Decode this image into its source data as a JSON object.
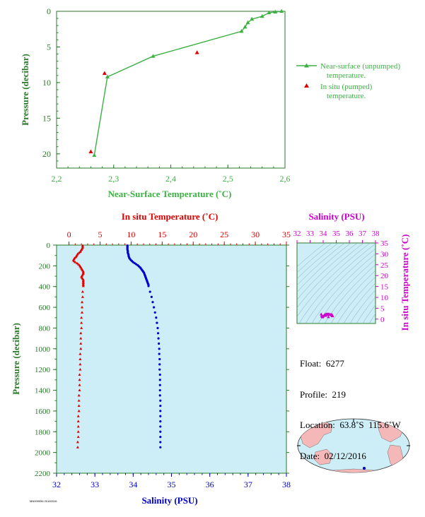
{
  "colors": {
    "surface": "#3cb043",
    "insitu": "#e00000",
    "salinity": "#0000cc",
    "ts": "#cc00cc",
    "axis_green": "#2a7a2a",
    "panel_bg": "#cdeef7",
    "land": "#f4b8b8"
  },
  "chart_data": [
    {
      "type": "line",
      "xlabel": "Near-Surface Temperature (˚C)",
      "ylabel": "Pressure (decibar)",
      "xlim": [
        2.2,
        2.6
      ],
      "ylim": [
        0,
        22
      ],
      "x_ticks": [
        "2,2",
        "2,3",
        "2,4",
        "2,5",
        "2,6"
      ],
      "y_ticks": [
        "0",
        "5",
        "10",
        "15",
        "20"
      ],
      "series": [
        {
          "name": "Near-surface (unpumped) temperature.",
          "points": [
            [
              2.266,
              20.2
            ],
            [
              2.289,
              9.2
            ],
            [
              2.369,
              6.3
            ],
            [
              2.524,
              2.8
            ],
            [
              2.53,
              2.2
            ],
            [
              2.535,
              1.6
            ],
            [
              2.542,
              1.1
            ],
            [
              2.56,
              0.7
            ],
            [
              2.572,
              0.2
            ],
            [
              2.583,
              0.1
            ],
            [
              2.594,
              0.0
            ]
          ]
        },
        {
          "name": "In situ (pumped) temperature.",
          "points": [
            [
              2.26,
              19.7
            ],
            [
              2.284,
              8.7
            ],
            [
              2.446,
              5.8
            ]
          ]
        }
      ],
      "legend_position": "right"
    },
    {
      "type": "line",
      "x_top_label": "In situ Temperature (˚C)",
      "x_bottom_label": "Salinity (PSU)",
      "ylabel": "Pressure (decibar)",
      "temp_lim": [
        -2,
        35
      ],
      "sal_lim": [
        32,
        38
      ],
      "ylim": [
        0,
        2200
      ],
      "temp_ticks": [
        "0",
        "5",
        "10",
        "15",
        "20",
        "25",
        "30",
        "35"
      ],
      "sal_ticks": [
        "32",
        "33",
        "34",
        "35",
        "36",
        "37",
        "38"
      ],
      "y_ticks": [
        "0",
        "200",
        "400",
        "600",
        "800",
        "1000",
        "1200",
        "1400",
        "1600",
        "1800",
        "2000",
        "2200"
      ],
      "temperature_profile": [
        [
          2.2,
          5
        ],
        [
          2.2,
          15
        ],
        [
          2.2,
          25
        ],
        [
          2.1,
          35
        ],
        [
          2.0,
          45
        ],
        [
          1.9,
          55
        ],
        [
          1.8,
          65
        ],
        [
          1.6,
          75
        ],
        [
          1.4,
          85
        ],
        [
          1.3,
          95
        ],
        [
          1.2,
          105
        ],
        [
          1.1,
          115
        ],
        [
          0.9,
          125
        ],
        [
          0.8,
          135
        ],
        [
          0.7,
          145
        ],
        [
          0.8,
          155
        ],
        [
          1.0,
          165
        ],
        [
          1.3,
          175
        ],
        [
          1.5,
          185
        ],
        [
          1.7,
          195
        ],
        [
          1.8,
          205
        ],
        [
          1.9,
          215
        ],
        [
          2.0,
          225
        ],
        [
          2.1,
          235
        ],
        [
          2.2,
          245
        ],
        [
          2.3,
          255
        ],
        [
          2.3,
          265
        ],
        [
          2.3,
          275
        ],
        [
          2.2,
          285
        ],
        [
          2.1,
          295
        ],
        [
          2.0,
          305
        ],
        [
          2.1,
          315
        ],
        [
          2.2,
          325
        ],
        [
          2.3,
          335
        ],
        [
          2.3,
          345
        ],
        [
          2.3,
          355
        ],
        [
          2.3,
          365
        ],
        [
          2.3,
          375
        ],
        [
          2.3,
          385
        ],
        [
          2.3,
          395
        ],
        [
          2.2,
          450
        ],
        [
          2.2,
          500
        ],
        [
          2.1,
          550
        ],
        [
          2.1,
          600
        ],
        [
          2.1,
          650
        ],
        [
          2.0,
          700
        ],
        [
          2.0,
          750
        ],
        [
          2.0,
          800
        ],
        [
          1.9,
          850
        ],
        [
          1.9,
          900
        ],
        [
          1.9,
          950
        ],
        [
          1.9,
          1000
        ],
        [
          1.8,
          1050
        ],
        [
          1.8,
          1100
        ],
        [
          1.8,
          1150
        ],
        [
          1.8,
          1200
        ],
        [
          1.7,
          1250
        ],
        [
          1.7,
          1300
        ],
        [
          1.7,
          1350
        ],
        [
          1.7,
          1400
        ],
        [
          1.6,
          1450
        ],
        [
          1.6,
          1500
        ],
        [
          1.6,
          1550
        ],
        [
          1.6,
          1600
        ],
        [
          1.5,
          1650
        ],
        [
          1.5,
          1700
        ],
        [
          1.5,
          1750
        ],
        [
          1.5,
          1800
        ],
        [
          1.5,
          1850
        ],
        [
          1.4,
          1900
        ],
        [
          1.4,
          1950
        ]
      ],
      "salinity_profile": [
        [
          33.85,
          5
        ],
        [
          33.85,
          15
        ],
        [
          33.85,
          25
        ],
        [
          33.85,
          35
        ],
        [
          33.85,
          45
        ],
        [
          33.86,
          55
        ],
        [
          33.86,
          65
        ],
        [
          33.86,
          75
        ],
        [
          33.87,
          85
        ],
        [
          33.88,
          95
        ],
        [
          33.88,
          105
        ],
        [
          33.89,
          115
        ],
        [
          33.9,
          125
        ],
        [
          33.92,
          135
        ],
        [
          33.94,
          145
        ],
        [
          33.97,
          155
        ],
        [
          34.0,
          165
        ],
        [
          34.04,
          175
        ],
        [
          34.08,
          185
        ],
        [
          34.12,
          195
        ],
        [
          34.15,
          205
        ],
        [
          34.18,
          215
        ],
        [
          34.2,
          225
        ],
        [
          34.22,
          235
        ],
        [
          34.24,
          245
        ],
        [
          34.26,
          255
        ],
        [
          34.28,
          265
        ],
        [
          34.29,
          275
        ],
        [
          34.3,
          285
        ],
        [
          34.31,
          295
        ],
        [
          34.32,
          305
        ],
        [
          34.33,
          315
        ],
        [
          34.34,
          325
        ],
        [
          34.35,
          335
        ],
        [
          34.36,
          345
        ],
        [
          34.37,
          355
        ],
        [
          34.38,
          365
        ],
        [
          34.39,
          375
        ],
        [
          34.4,
          385
        ],
        [
          34.4,
          395
        ],
        [
          34.44,
          450
        ],
        [
          34.48,
          500
        ],
        [
          34.51,
          550
        ],
        [
          34.54,
          600
        ],
        [
          34.57,
          650
        ],
        [
          34.6,
          700
        ],
        [
          34.62,
          750
        ],
        [
          34.64,
          800
        ],
        [
          34.65,
          850
        ],
        [
          34.66,
          900
        ],
        [
          34.67,
          950
        ],
        [
          34.68,
          1000
        ],
        [
          34.68,
          1050
        ],
        [
          34.69,
          1100
        ],
        [
          34.69,
          1150
        ],
        [
          34.69,
          1200
        ],
        [
          34.7,
          1250
        ],
        [
          34.7,
          1300
        ],
        [
          34.7,
          1350
        ],
        [
          34.7,
          1400
        ],
        [
          34.7,
          1450
        ],
        [
          34.71,
          1500
        ],
        [
          34.71,
          1550
        ],
        [
          34.71,
          1600
        ],
        [
          34.71,
          1650
        ],
        [
          34.71,
          1700
        ],
        [
          34.71,
          1750
        ],
        [
          34.71,
          1800
        ],
        [
          34.71,
          1850
        ],
        [
          34.71,
          1900
        ],
        [
          34.71,
          1950
        ]
      ]
    },
    {
      "type": "scatter",
      "xlabel": "Salinity (PSU)",
      "ylabel": "In situ Temperature (˚C)",
      "xlim": [
        32,
        38
      ],
      "ylim": [
        -2,
        35
      ],
      "x_ticks": [
        "32",
        "33",
        "34",
        "35",
        "36",
        "37",
        "38"
      ],
      "y_ticks": [
        "0",
        "5",
        "10",
        "15",
        "20",
        "25",
        "30",
        "35"
      ],
      "points": [
        [
          33.85,
          2.2
        ],
        [
          33.88,
          1.3
        ],
        [
          33.95,
          0.9
        ],
        [
          34.0,
          1.3
        ],
        [
          34.08,
          1.8
        ],
        [
          34.15,
          2.1
        ],
        [
          34.22,
          2.3
        ],
        [
          34.28,
          2.3
        ],
        [
          34.32,
          2.1
        ],
        [
          34.36,
          2.3
        ],
        [
          34.4,
          2.3
        ],
        [
          34.48,
          2.2
        ],
        [
          34.54,
          2.1
        ],
        [
          34.6,
          2.0
        ],
        [
          34.64,
          2.0
        ],
        [
          34.66,
          1.9
        ],
        [
          34.68,
          1.9
        ],
        [
          34.69,
          1.8
        ],
        [
          34.7,
          1.7
        ],
        [
          34.7,
          1.6
        ],
        [
          34.71,
          1.5
        ],
        [
          34.71,
          1.4
        ],
        [
          34.4,
          1.0
        ],
        [
          34.2,
          1.6
        ]
      ]
    }
  ],
  "info": {
    "float_label": "Float:",
    "float_value": "6277",
    "profile_label": "Profile:",
    "profile_value": "219",
    "location_label": "Location:",
    "location_value": "63.8˚S  115.6˚W",
    "date_label": "Date:",
    "date_value": "02/12/2016"
  },
  "footer": {
    "code": "MN009056 20160316"
  }
}
